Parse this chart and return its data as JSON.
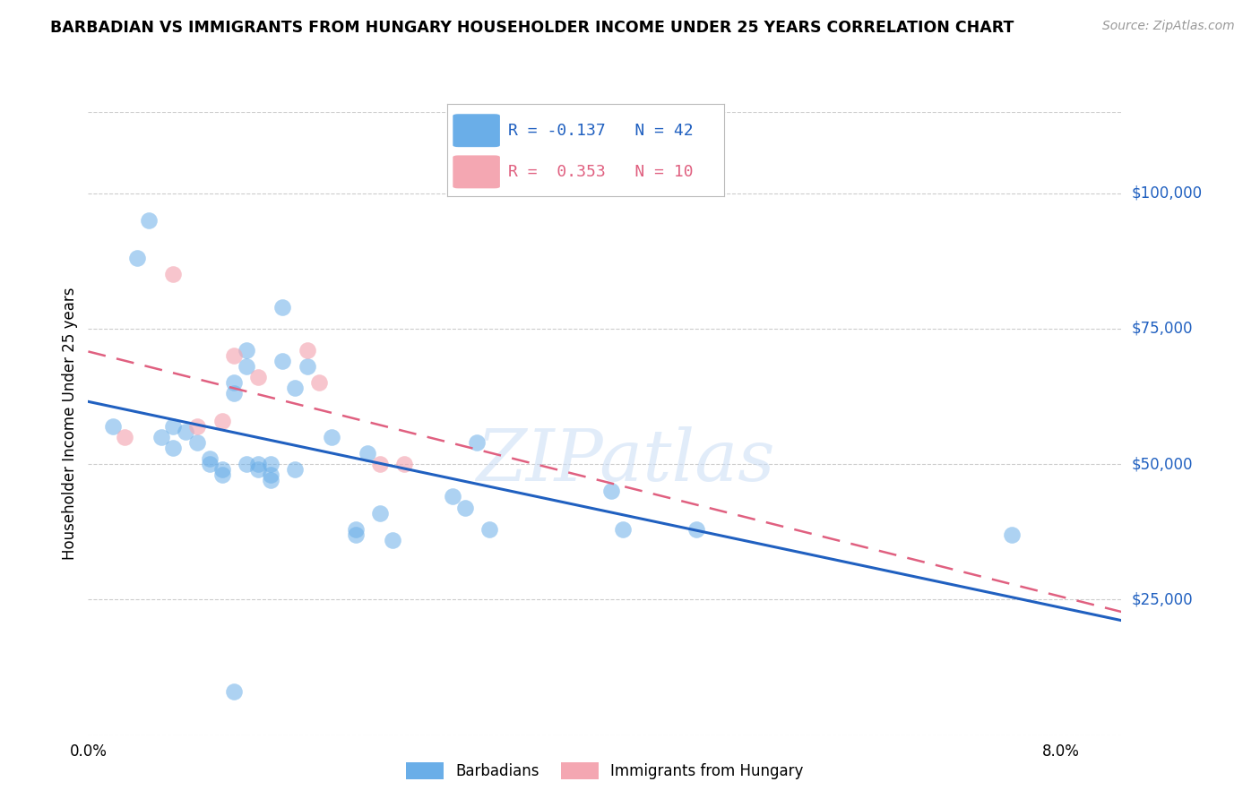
{
  "title": "BARBADIAN VS IMMIGRANTS FROM HUNGARY HOUSEHOLDER INCOME UNDER 25 YEARS CORRELATION CHART",
  "source": "Source: ZipAtlas.com",
  "ylabel": "Householder Income Under 25 years",
  "legend_label1": "Barbadians",
  "legend_label2": "Immigrants from Hungary",
  "R1": "-0.137",
  "N1": "42",
  "R2": "0.353",
  "N2": "10",
  "watermark": "ZIPatlas",
  "blue_color": "#6aaee8",
  "pink_color": "#f4a7b2",
  "blue_line_color": "#2060c0",
  "pink_line_color": "#e06080",
  "xlim": [
    0.0,
    0.085
  ],
  "ylim": [
    0,
    115000
  ],
  "yticks": [
    25000,
    50000,
    75000,
    100000
  ],
  "ytick_labels": [
    "$25,000",
    "$50,000",
    "$75,000",
    "$100,000"
  ],
  "xtick_vals": [
    0.0,
    0.02,
    0.04,
    0.06,
    0.08
  ],
  "xtick_labels": [
    "0.0%",
    "",
    "",
    "",
    "8.0%"
  ],
  "grid_color": "#cccccc",
  "barbadians_x": [
    0.002,
    0.004,
    0.005,
    0.006,
    0.007,
    0.007,
    0.008,
    0.009,
    0.01,
    0.01,
    0.011,
    0.011,
    0.012,
    0.012,
    0.013,
    0.013,
    0.013,
    0.014,
    0.014,
    0.015,
    0.015,
    0.015,
    0.016,
    0.016,
    0.017,
    0.017,
    0.018,
    0.02,
    0.022,
    0.022,
    0.023,
    0.024,
    0.025,
    0.03,
    0.031,
    0.032,
    0.033,
    0.043,
    0.044,
    0.05,
    0.076,
    0.012
  ],
  "barbadians_y": [
    57000,
    88000,
    95000,
    55000,
    57000,
    53000,
    56000,
    54000,
    51000,
    50000,
    49000,
    48000,
    65000,
    63000,
    71000,
    68000,
    50000,
    49000,
    50000,
    50000,
    48000,
    47000,
    79000,
    69000,
    64000,
    49000,
    68000,
    55000,
    38000,
    37000,
    52000,
    41000,
    36000,
    44000,
    42000,
    54000,
    38000,
    45000,
    38000,
    38000,
    37000,
    8000
  ],
  "hungary_x": [
    0.003,
    0.007,
    0.009,
    0.011,
    0.012,
    0.014,
    0.018,
    0.019,
    0.024,
    0.026
  ],
  "hungary_y": [
    55000,
    85000,
    57000,
    58000,
    70000,
    66000,
    71000,
    65000,
    50000,
    50000
  ]
}
